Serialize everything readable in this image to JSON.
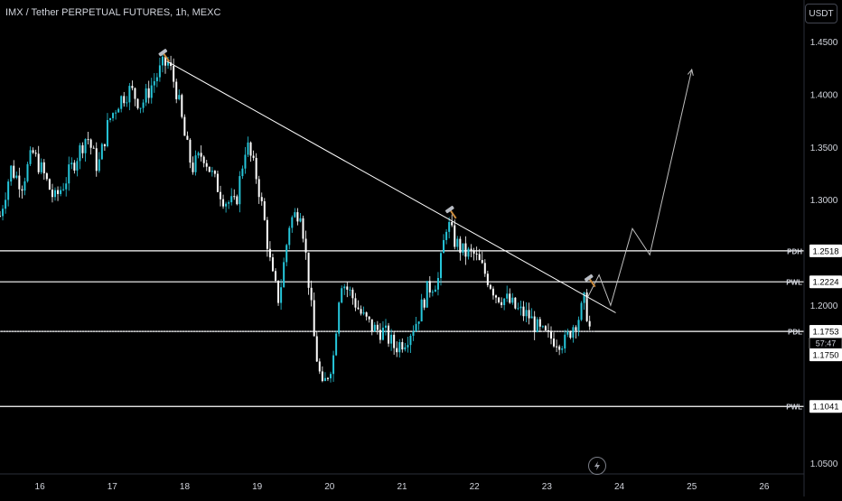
{
  "header": {
    "title": "IMX / Tether PERPETUAL FUTURES, 1h, MEXC",
    "currency_button": "USDT"
  },
  "chart_data": {
    "type": "candlestick",
    "title": "IMX / Tether PERPETUAL FUTURES, 1h, MEXC",
    "price_axis": {
      "ticks": [
        "1.4500",
        "1.4000",
        "1.3500",
        "1.3000",
        "1.2000",
        "1.0500"
      ],
      "range": [
        1.04,
        1.49
      ]
    },
    "time_axis": {
      "ticks": [
        "16",
        "17",
        "18",
        "19",
        "20",
        "21",
        "22",
        "23",
        "24",
        "25",
        "26"
      ],
      "range": [
        15.45,
        26.55
      ]
    },
    "colors": {
      "up": "#26c6da",
      "down": "#ffffff",
      "lines": "#ffffff",
      "projection": "#bfbfbf",
      "background": "#000000"
    },
    "levels": [
      {
        "name": "PDH",
        "price": 1.2518,
        "label": "1.2518",
        "style": "solid"
      },
      {
        "name": "PWL",
        "price": 1.2224,
        "label": "1.2224",
        "style": "solid"
      },
      {
        "name": "PDL",
        "price": 1.1753,
        "label": "1.1753",
        "style": "solid"
      },
      {
        "name": "PWL",
        "price": 1.1041,
        "label": "1.1041",
        "style": "solid"
      }
    ],
    "current_price": {
      "label": "1.1753",
      "countdown": "57:47",
      "price": 1.1753
    },
    "extra_price_label": {
      "label": "1.1750",
      "price": 1.175
    },
    "trendline": {
      "from": {
        "x": 17.75,
        "y": 1.432
      },
      "to": {
        "x": 23.95,
        "y": 1.193
      }
    },
    "projection_path": [
      {
        "x": 23.55,
        "y": 1.206
      },
      {
        "x": 23.72,
        "y": 1.229
      },
      {
        "x": 23.88,
        "y": 1.2
      },
      {
        "x": 24.18,
        "y": 1.273
      },
      {
        "x": 24.42,
        "y": 1.248
      },
      {
        "x": 25.0,
        "y": 1.424
      }
    ],
    "hammer_markers": [
      {
        "x": 17.72,
        "y": 1.438
      },
      {
        "x": 21.68,
        "y": 1.289
      },
      {
        "x": 23.6,
        "y": 1.224
      }
    ],
    "price_path": [
      [
        15.45,
        1.285
      ],
      [
        15.6,
        1.33
      ],
      [
        15.75,
        1.315
      ],
      [
        15.9,
        1.345
      ],
      [
        16.05,
        1.325
      ],
      [
        16.2,
        1.3
      ],
      [
        16.35,
        1.318
      ],
      [
        16.5,
        1.34
      ],
      [
        16.65,
        1.362
      ],
      [
        16.8,
        1.33
      ],
      [
        16.95,
        1.375
      ],
      [
        17.1,
        1.395
      ],
      [
        17.25,
        1.405
      ],
      [
        17.4,
        1.39
      ],
      [
        17.55,
        1.41
      ],
      [
        17.7,
        1.428
      ],
      [
        17.78,
        1.43
      ],
      [
        17.9,
        1.4
      ],
      [
        18.0,
        1.36
      ],
      [
        18.1,
        1.33
      ],
      [
        18.25,
        1.345
      ],
      [
        18.4,
        1.32
      ],
      [
        18.55,
        1.3
      ],
      [
        18.7,
        1.295
      ],
      [
        18.85,
        1.355
      ],
      [
        19.0,
        1.32
      ],
      [
        19.1,
        1.28
      ],
      [
        19.2,
        1.23
      ],
      [
        19.3,
        1.205
      ],
      [
        19.45,
        1.28
      ],
      [
        19.6,
        1.292
      ],
      [
        19.7,
        1.23
      ],
      [
        19.8,
        1.16
      ],
      [
        19.9,
        1.12
      ],
      [
        20.05,
        1.15
      ],
      [
        20.15,
        1.225
      ],
      [
        20.3,
        1.21
      ],
      [
        20.45,
        1.19
      ],
      [
        20.6,
        1.178
      ],
      [
        20.75,
        1.175
      ],
      [
        20.9,
        1.16
      ],
      [
        21.05,
        1.168
      ],
      [
        21.2,
        1.185
      ],
      [
        21.35,
        1.215
      ],
      [
        21.5,
        1.225
      ],
      [
        21.62,
        1.28
      ],
      [
        21.72,
        1.262
      ],
      [
        21.85,
        1.25
      ],
      [
        22.0,
        1.248
      ],
      [
        22.15,
        1.23
      ],
      [
        22.3,
        1.21
      ],
      [
        22.45,
        1.205
      ],
      [
        22.6,
        1.195
      ],
      [
        22.75,
        1.19
      ],
      [
        22.9,
        1.175
      ],
      [
        23.0,
        1.17
      ],
      [
        23.12,
        1.168
      ],
      [
        23.25,
        1.165
      ],
      [
        23.35,
        1.18
      ],
      [
        23.45,
        1.19
      ],
      [
        23.52,
        1.205
      ],
      [
        23.6,
        1.175
      ]
    ]
  }
}
